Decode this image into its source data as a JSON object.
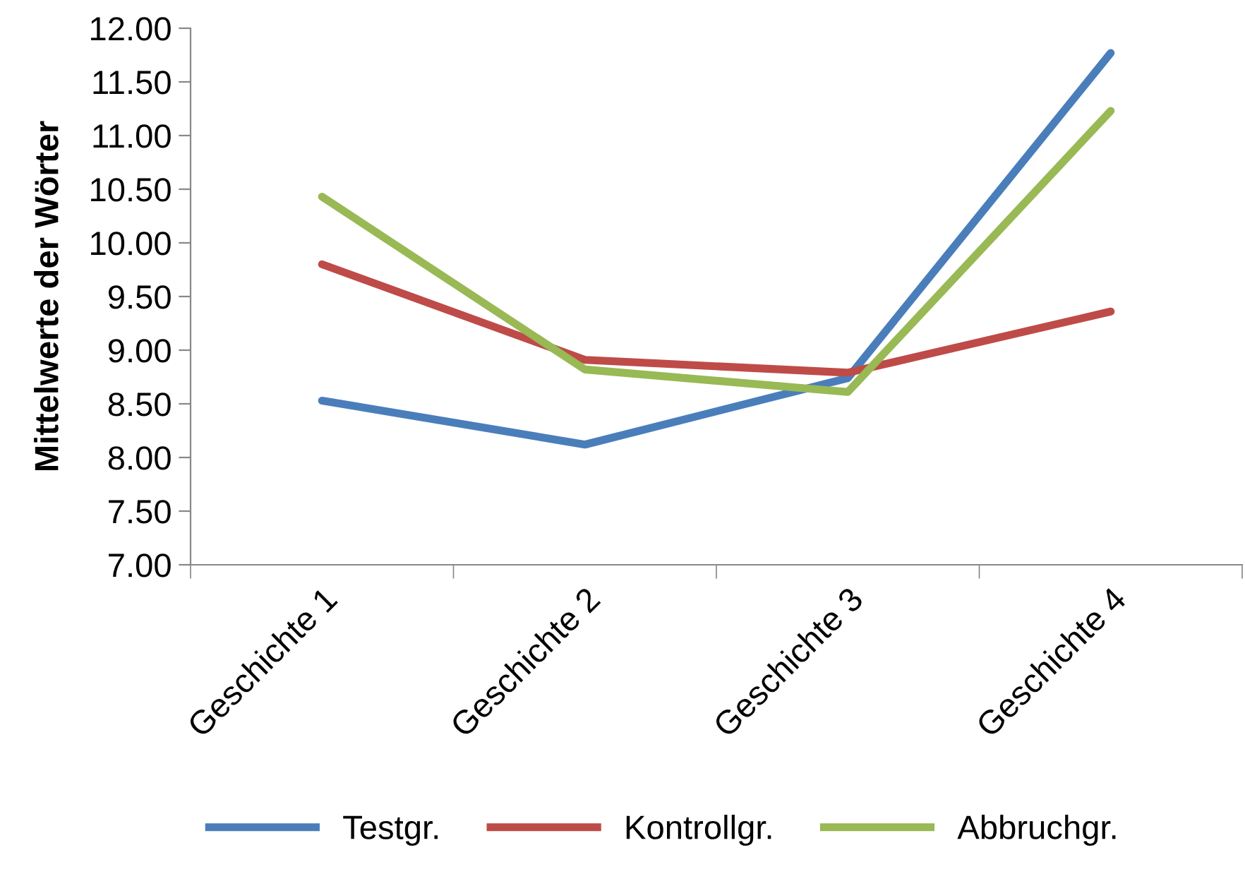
{
  "chart_data": {
    "type": "line",
    "ylabel": "Mittelwerte der Wörter",
    "categories": [
      "Geschichte 1",
      "Geschichte 2",
      "Geschichte 3",
      "Geschichte 4"
    ],
    "series": [
      {
        "name": "Testgr.",
        "color": "#4a7ebb",
        "values": [
          8.53,
          8.12,
          8.74,
          11.77
        ]
      },
      {
        "name": "Kontrollgr.",
        "color": "#be4b48",
        "values": [
          9.8,
          8.91,
          8.79,
          9.36
        ]
      },
      {
        "name": "Abbruchgr.",
        "color": "#98b954",
        "values": [
          10.43,
          8.82,
          8.61,
          11.23
        ]
      }
    ],
    "ylim": [
      7,
      12
    ],
    "yticks": [
      {
        "value": 7,
        "label": "7.00"
      },
      {
        "value": 7.5,
        "label": "7.50"
      },
      {
        "value": 8,
        "label": "8.00"
      },
      {
        "value": 8.5,
        "label": "8.50"
      },
      {
        "value": 9,
        "label": "9.00"
      },
      {
        "value": 9.5,
        "label": "9.50"
      },
      {
        "value": 10,
        "label": "10.00"
      },
      {
        "value": 10.5,
        "label": "10.50"
      },
      {
        "value": 11,
        "label": "11.00"
      },
      {
        "value": 11.5,
        "label": "11.50"
      },
      {
        "value": 12,
        "label": "12.00"
      }
    ],
    "grid": false,
    "legend": "bottom",
    "marker": "none",
    "line_style": "solid"
  }
}
